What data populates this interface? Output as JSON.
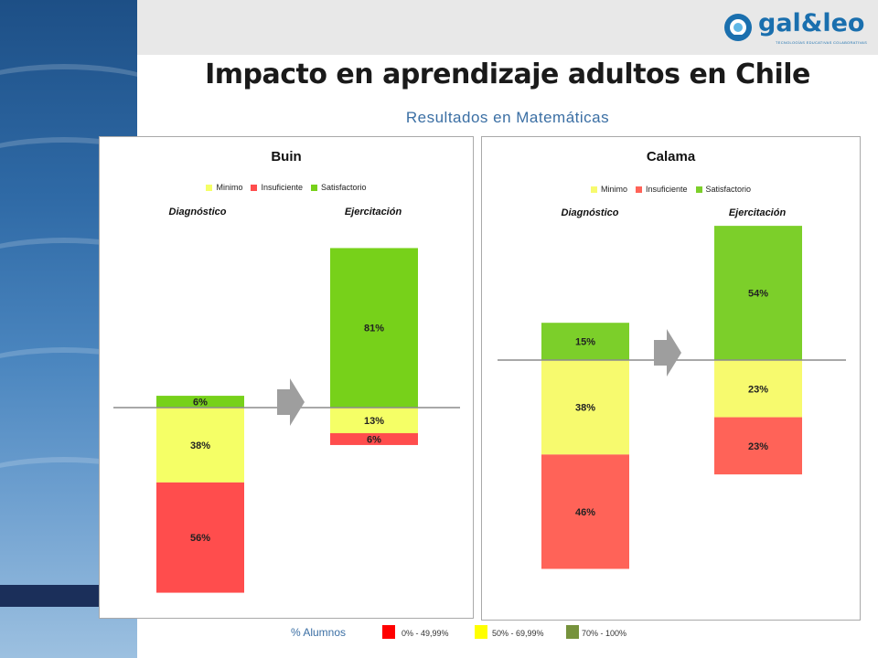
{
  "header": {
    "title": "Impacto en aprendizaje adultos en Chile",
    "subtitle": "Resultados en Matemáticas",
    "logo_text": "gal&leo",
    "logo_tagline": "TECNOLOGÍAS EDUCATIVAS COLABORATIVAS"
  },
  "chart_data": [
    {
      "type": "bar",
      "title": "Buin",
      "legend": [
        "Minimo",
        "Insuficiente",
        "Satisfactorio"
      ],
      "categories": [
        "Diagnóstico",
        "Ejercitación"
      ],
      "series": [
        {
          "name": "Insuficiente",
          "values": [
            56,
            6
          ],
          "labels": [
            "56%",
            "6%"
          ],
          "color": "#ff4d4d"
        },
        {
          "name": "Minimo",
          "values": [
            38,
            13
          ],
          "labels": [
            "38%",
            "13%"
          ],
          "color": "#f5ff66"
        },
        {
          "name": "Satisfactorio",
          "values": [
            6,
            81
          ],
          "labels": [
            "6%",
            "81%"
          ],
          "color": "#77d11a"
        }
      ],
      "baseline": "between Minimo and Satisfactorio"
    },
    {
      "type": "bar",
      "title": "Calama",
      "legend": [
        "Minimo",
        "Insuficiente",
        "Satisfactorio"
      ],
      "categories": [
        "Diagnóstico",
        "Ejercitación"
      ],
      "series": [
        {
          "name": "Insuficiente",
          "values": [
            46,
            23
          ],
          "labels": [
            "46%",
            "23%"
          ],
          "color": "#ff6358"
        },
        {
          "name": "Minimo",
          "values": [
            38,
            23
          ],
          "labels": [
            "38%",
            "23%"
          ],
          "color": "#f7fa6e"
        },
        {
          "name": "Satisfactorio",
          "values": [
            15,
            54
          ],
          "labels": [
            "15%",
            "54%"
          ],
          "color": "#7ccf2a"
        }
      ],
      "baseline": "between Minimo and Satisfactorio"
    }
  ],
  "footer_legend": {
    "title": "% Alumnos",
    "items": [
      {
        "label": "0% - 49,99%",
        "color": "#ff0000"
      },
      {
        "label": "50% - 69,99%",
        "color": "#ffff00"
      },
      {
        "label": "70% - 100%",
        "color": "#76923c"
      }
    ]
  },
  "colors": {
    "title_blue": "#3b6fa4",
    "arrow": "#9e9e9e",
    "baseline": "#8c8c8c"
  }
}
